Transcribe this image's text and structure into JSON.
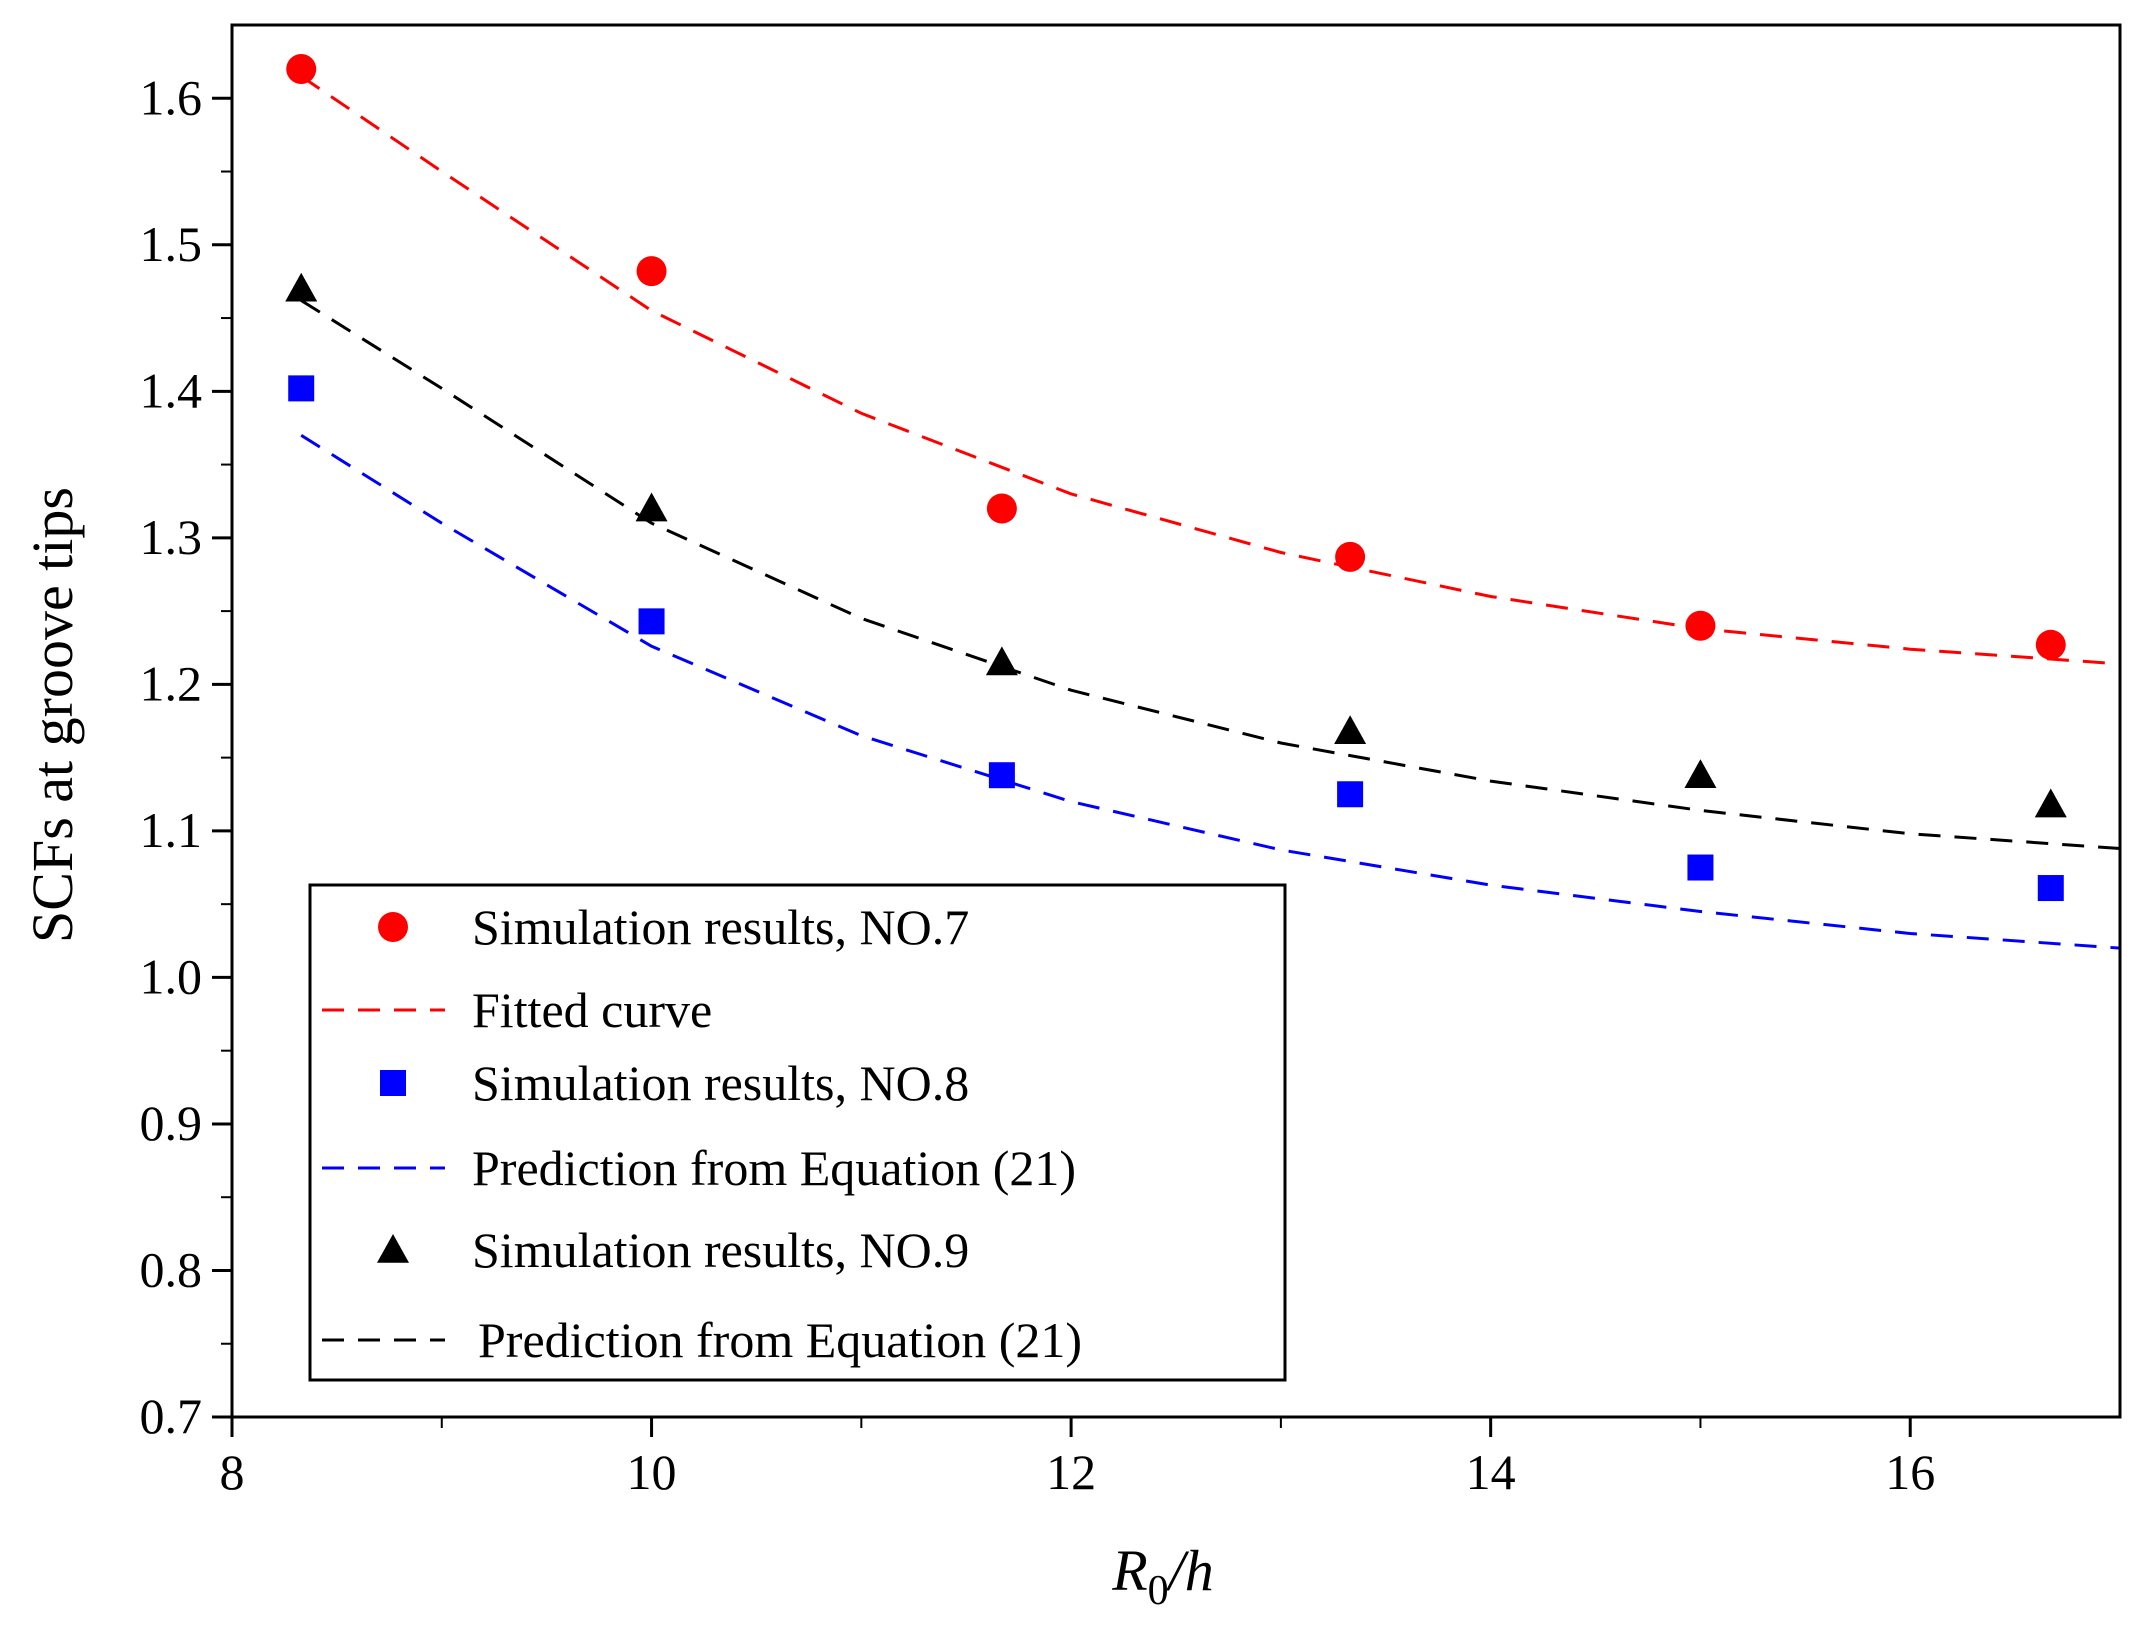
{
  "chart_data": {
    "type": "scatter",
    "xlabel": {
      "main": "R",
      "sub": "0",
      "rest": "/h"
    },
    "ylabel": "SCFs at  groove tips",
    "xlim": [
      8,
      17
    ],
    "ylim": [
      0.7,
      1.65
    ],
    "xticks": [
      8,
      10,
      12,
      14,
      16
    ],
    "xtick_labels": [
      "8",
      "10",
      "12",
      "14",
      "16"
    ],
    "yticks": [
      0.7,
      0.8,
      0.9,
      1.0,
      1.1,
      1.2,
      1.3,
      1.4,
      1.5,
      1.6
    ],
    "ytick_labels": [
      "0.7",
      "0.8",
      "0.9",
      "1.0",
      "1.1",
      "1.2",
      "1.3",
      "1.4",
      "1.5",
      "1.6"
    ],
    "legend_position": "bottom-left",
    "series": [
      {
        "name": "Simulation results, NO.7",
        "kind": "markers",
        "marker": "circle",
        "color": "#ff0000",
        "x": [
          8.33,
          10.0,
          11.67,
          13.33,
          15.0,
          16.67
        ],
        "y": [
          1.62,
          1.482,
          1.32,
          1.287,
          1.24,
          1.227
        ]
      },
      {
        "name": "Fitted curve",
        "kind": "dashed-line",
        "color": "#ff0000",
        "x": [
          8.33,
          9.0,
          10.0,
          11.0,
          12.0,
          13.0,
          14.0,
          15.0,
          16.0,
          17.0
        ],
        "y": [
          1.615,
          1.55,
          1.455,
          1.385,
          1.33,
          1.29,
          1.26,
          1.238,
          1.224,
          1.214
        ]
      },
      {
        "name": "Simulation results, NO.8",
        "kind": "markers",
        "marker": "square",
        "color": "#0000ff",
        "x": [
          8.33,
          10.0,
          11.67,
          13.33,
          15.0,
          16.67
        ],
        "y": [
          1.402,
          1.243,
          1.138,
          1.125,
          1.075,
          1.061
        ]
      },
      {
        "name": "Prediction from Equation (21)",
        "kind": "dashed-line",
        "color": "#0000ff",
        "x": [
          8.33,
          9.0,
          10.0,
          11.0,
          12.0,
          13.0,
          14.0,
          15.0,
          16.0,
          17.0
        ],
        "y": [
          1.37,
          1.31,
          1.226,
          1.165,
          1.12,
          1.087,
          1.063,
          1.045,
          1.03,
          1.02
        ]
      },
      {
        "name": "Simulation results, NO.9",
        "kind": "markers",
        "marker": "triangle",
        "color": "#000000",
        "x": [
          8.33,
          10.0,
          11.67,
          13.33,
          15.0,
          16.67
        ],
        "y": [
          1.47,
          1.32,
          1.215,
          1.168,
          1.138,
          1.118
        ]
      },
      {
        "name": "Prediction from Equation (21)",
        "kind": "dashed-line",
        "color": "#000000",
        "x": [
          8.33,
          9.0,
          10.0,
          11.0,
          12.0,
          13.0,
          14.0,
          15.0,
          16.0,
          17.0
        ],
        "y": [
          1.462,
          1.402,
          1.31,
          1.245,
          1.196,
          1.16,
          1.134,
          1.114,
          1.098,
          1.088
        ]
      }
    ]
  }
}
